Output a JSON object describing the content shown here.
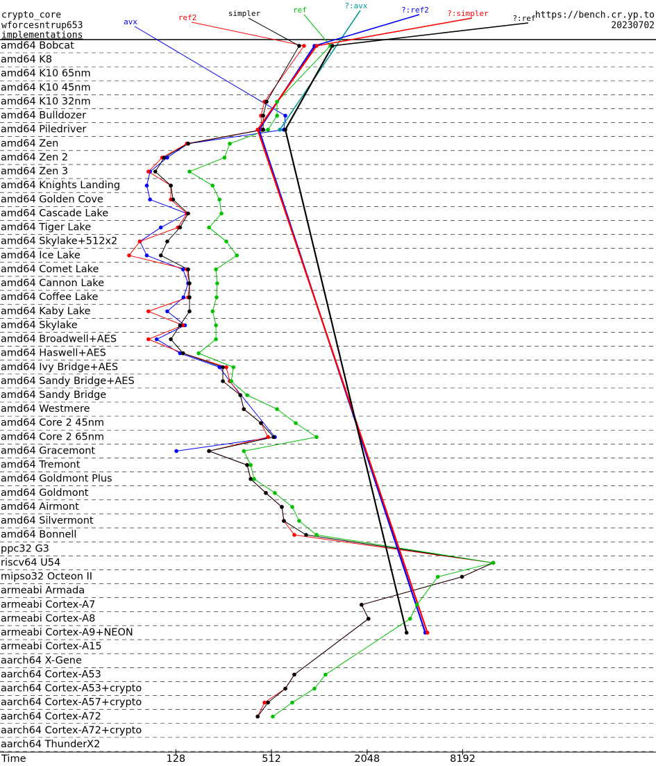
{
  "chart_data": {
    "type": "line",
    "header": {
      "primitive": "crypto_core",
      "name": "wforcesntrup653",
      "heading": "implementations",
      "site": "https://bench.cr.yp.to",
      "date": "20230702"
    },
    "xlabel": "Time",
    "xscale": "log",
    "xlim": [
      10,
      135000
    ],
    "xticks": [
      128,
      512,
      2048,
      8192
    ],
    "categories": [
      "amd64 Bobcat",
      "amd64 K8",
      "amd64 K10 65nm",
      "amd64 K10 45nm",
      "amd64 K10 32nm",
      "amd64 Bulldozer",
      "amd64 Piledriver",
      "amd64 Zen",
      "amd64 Zen 2",
      "amd64 Zen 3",
      "amd64 Knights Landing",
      "amd64 Golden Cove",
      "amd64 Cascade Lake",
      "amd64 Tiger Lake",
      "amd64 Skylake+512x2",
      "amd64 Ice Lake",
      "amd64 Comet Lake",
      "amd64 Cannon Lake",
      "amd64 Coffee Lake",
      "amd64 Kaby Lake",
      "amd64 Skylake",
      "amd64 Broadwell+AES",
      "amd64 Haswell+AES",
      "amd64 Ivy Bridge+AES",
      "amd64 Sandy Bridge+AES",
      "amd64 Sandy Bridge",
      "amd64 Westmere",
      "amd64 Core 2 45nm",
      "amd64 Core 2 65nm",
      "amd64 Gracemont",
      "amd64 Tremont",
      "amd64 Goldmont Plus",
      "amd64 Goldmont",
      "amd64 Airmont",
      "amd64 Silvermont",
      "amd64 Bonnell",
      "ppc32 G3",
      "riscv64 U54",
      "mipso32 Octeon II",
      "armeabi Armada",
      "armeabi Cortex-A7",
      "armeabi Cortex-A8",
      "armeabi Cortex-A9+NEON",
      "armeabi Cortex-A15",
      "aarch64 X-Gene",
      "aarch64 Cortex-A53",
      "aarch64 Cortex-A53+crypto",
      "aarch64 Cortex-A57+crypto",
      "aarch64 Cortex-A72",
      "aarch64 Cortex-A72+crypto",
      "aarch64 ThunderX2"
    ],
    "series": [
      {
        "name": "avx",
        "color": "#0000ff",
        "values": [
          null,
          null,
          null,
          null,
          null,
          626,
          613,
          153,
          113,
          88,
          84,
          88,
          150,
          103,
          76,
          84,
          142,
          153,
          143,
          113,
          146,
          97,
          136,
          241,
          280,
          null,
          null,
          null,
          538,
          129,
          null,
          null,
          null,
          null,
          null,
          null,
          null,
          null,
          null,
          null,
          null,
          null,
          null,
          null,
          null,
          null,
          null,
          null,
          null,
          null,
          null
        ]
      },
      {
        "name": "ref2",
        "color": "#ff0000",
        "values": [
          821,
          null,
          null,
          null,
          463,
          440,
          445,
          150,
          105,
          86,
          119,
          119,
          150,
          132,
          76,
          65,
          150,
          156,
          153,
          86,
          142,
          86,
          142,
          266,
          280,
          326,
          343,
          440,
          487,
          207,
          360,
          379,
          472,
          595,
          613,
          713,
          null,
          12750,
          8110,
          null,
          1890,
          2090,
          null,
          null,
          null,
          713,
          626,
          463,
          419,
          null,
          null
        ]
      },
      {
        "name": "simpler",
        "color": "#000000",
        "values": [
          765,
          null,
          null,
          null,
          477,
          454,
          454,
          153,
          108,
          95,
          119,
          123,
          153,
          136,
          113,
          103,
          153,
          156,
          156,
          156,
          136,
          119,
          142,
          253,
          253,
          326,
          343,
          440,
          528,
          207,
          360,
          379,
          472,
          595,
          613,
          846,
          null,
          12750,
          8110,
          null,
          1890,
          2090,
          null,
          null,
          null,
          713,
          626,
          487,
          419,
          null,
          null
        ]
      },
      {
        "name": "ref",
        "color": "#00c000",
        "values": [
          1203,
          null,
          null,
          null,
          555,
          555,
          487,
          280,
          259,
          156,
          218,
          241,
          248,
          207,
          266,
          310,
          229,
          233,
          231,
          218,
          229,
          229,
          178,
          295,
          286,
          360,
          555,
          728,
          984,
          343,
          379,
          398,
          538,
          692,
          765,
          984,
          null,
          12750,
          5710,
          null,
          4220,
          3820,
          null,
          null,
          null,
          1120,
          955,
          692,
          522,
          null,
          null
        ]
      },
      {
        "name": "?:avx",
        "color": "#009999",
        "values": [
          null,
          null,
          null,
          null,
          null,
          null,
          578,
          null,
          null,
          null,
          null,
          null,
          null,
          null,
          null,
          null,
          null,
          null,
          null,
          null,
          null,
          null,
          null,
          null,
          null,
          null,
          null,
          null,
          null,
          null,
          null,
          null,
          null,
          null,
          null,
          null,
          null,
          null,
          null,
          null,
          null,
          null,
          null,
          null,
          null,
          null,
          null,
          null,
          null,
          null,
          null
        ]
      },
      {
        "name": "?:ref2",
        "color": "#0000ff",
        "values": [
          955,
          null,
          null,
          null,
          null,
          null,
          427,
          null,
          null,
          null,
          null,
          null,
          null,
          null,
          null,
          null,
          null,
          null,
          null,
          null,
          null,
          null,
          null,
          null,
          null,
          null,
          null,
          null,
          null,
          null,
          null,
          null,
          null,
          null,
          null,
          null,
          null,
          null,
          null,
          null,
          null,
          null,
          4760,
          null,
          null,
          null,
          null,
          null,
          null,
          null,
          null
        ]
      },
      {
        "name": "?:simpler",
        "color": "#ff0000",
        "values": [
          984,
          null,
          null,
          null,
          null,
          null,
          419,
          null,
          null,
          null,
          null,
          null,
          null,
          null,
          null,
          null,
          null,
          null,
          null,
          null,
          null,
          null,
          null,
          null,
          null,
          null,
          null,
          null,
          null,
          null,
          null,
          null,
          null,
          null,
          null,
          null,
          null,
          null,
          null,
          null,
          null,
          null,
          4910,
          null,
          null,
          null,
          null,
          null,
          null,
          null,
          null
        ]
      },
      {
        "name": "?:ref",
        "color": "#000000",
        "values": [
          1239,
          null,
          null,
          null,
          null,
          null,
          626,
          null,
          null,
          null,
          null,
          null,
          null,
          null,
          null,
          null,
          null,
          null,
          null,
          null,
          null,
          null,
          null,
          null,
          null,
          null,
          null,
          null,
          null,
          null,
          null,
          null,
          null,
          null,
          null,
          null,
          null,
          null,
          null,
          null,
          null,
          null,
          3630,
          null,
          null,
          null,
          null,
          null,
          null,
          null,
          null
        ]
      }
    ]
  }
}
